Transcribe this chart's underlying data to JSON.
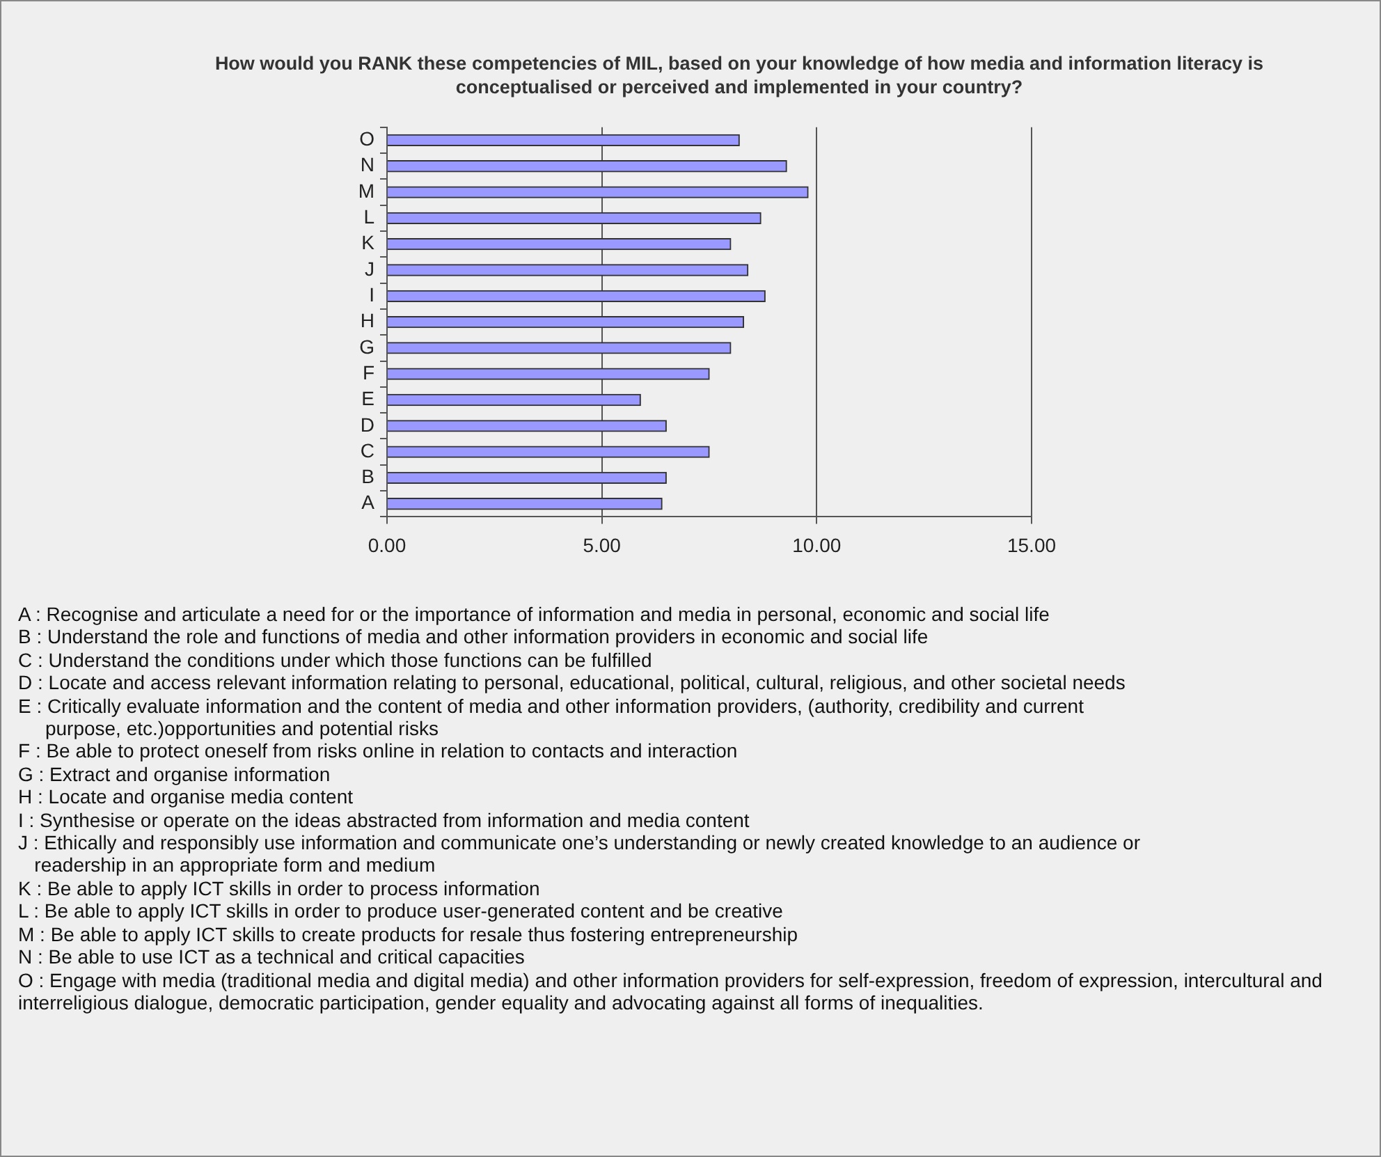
{
  "chart_data": {
    "type": "bar",
    "orientation": "horizontal",
    "title": "How would you RANK these competencies of MIL, based on your knowledge of how media and information literacy is conceptualised or perceived and implemented in your country?",
    "categories": [
      "O",
      "N",
      "M",
      "L",
      "K",
      "J",
      "I",
      "H",
      "G",
      "F",
      "E",
      "D",
      "C",
      "B",
      "A"
    ],
    "values": [
      8.2,
      9.3,
      9.8,
      8.7,
      8.0,
      8.4,
      8.8,
      8.3,
      8.0,
      7.5,
      5.9,
      6.5,
      7.5,
      6.5,
      6.4
    ],
    "color": "#9999ff",
    "xlim": [
      0,
      15
    ],
    "xticks": [
      {
        "value": 0,
        "label": "0.00"
      },
      {
        "value": 5,
        "label": "5.00"
      },
      {
        "value": 10,
        "label": "10.00"
      },
      {
        "value": 15,
        "label": "15.00"
      }
    ],
    "grid": "x",
    "annotations": [
      "A : Recognise and articulate a need for or the importance of information and media in personal, economic and social life",
      "B : Understand the role and functions of media and other information providers in economic and social life",
      "C : Understand the conditions under which those functions can be fulfilled",
      "D : Locate and access relevant information relating to personal, educational, political, cultural, religious, and other societal needs",
      "E : Critically evaluate information and the content of media and other information providers, (authority, credibility and current\n     purpose, etc.)opportunities and potential risks",
      "F : Be able to protect oneself from risks online in relation to contacts and interaction",
      "G : Extract and organise information",
      "H : Locate and organise media content",
      "I : Synthesise or operate on the ideas abstracted from information and media content",
      "J : Ethically and responsibly use information and communicate one’s understanding or newly created knowledge to an audience or\n   readership in an appropriate form and medium",
      "K : Be able to apply ICT skills in order to process information",
      "L : Be able to apply ICT skills in order to produce user-generated content and be creative",
      "M : Be able to apply ICT skills to create products for resale thus fostering entrepreneurship",
      "N : Be able to use ICT as a technical and critical capacities",
      "O : Engage with media (traditional media and digital media) and other information providers for self-expression, freedom of expression, intercultural and interreligious dialogue, democratic participation, gender equality and advocating against all forms of inequalities."
    ]
  }
}
